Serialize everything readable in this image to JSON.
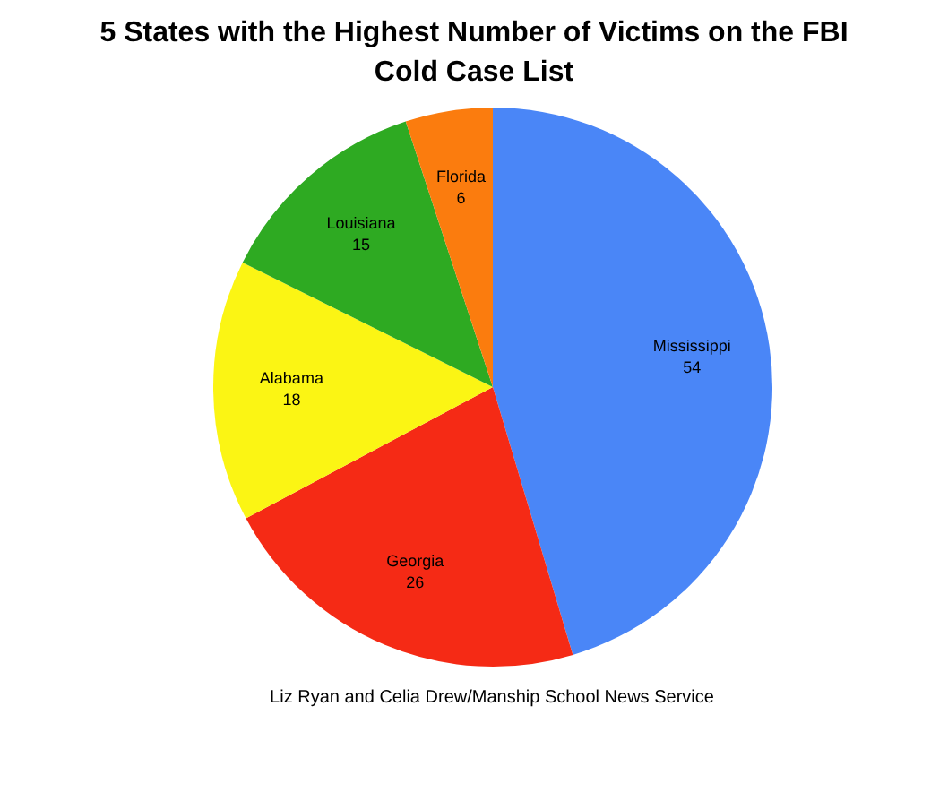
{
  "chart_data": {
    "type": "pie",
    "title": "5 States with the Highest Number of Victims on the FBI Cold Case List",
    "categories": [
      "Mississippi",
      "Georgia",
      "Alabama",
      "Louisiana",
      "Florida"
    ],
    "values": [
      54,
      26,
      18,
      15,
      6
    ],
    "colors": [
      "#4a86f7",
      "#f52a15",
      "#fbf514",
      "#2eaa22",
      "#fb7c0e"
    ],
    "data_labels": true,
    "legend": false,
    "annotations": [
      "Liz Ryan and Celia Drew/Manship School News Service"
    ]
  }
}
